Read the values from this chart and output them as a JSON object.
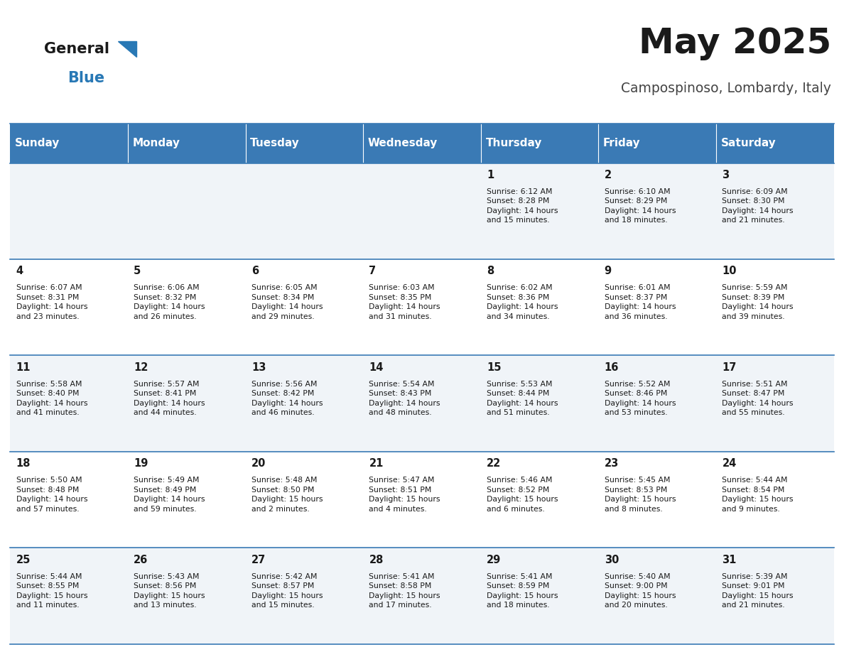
{
  "title": "May 2025",
  "subtitle": "Campospinoso, Lombardy, Italy",
  "header_bg": "#3a7ab5",
  "header_text": "#ffffff",
  "days_of_week": [
    "Sunday",
    "Monday",
    "Tuesday",
    "Wednesday",
    "Thursday",
    "Friday",
    "Saturday"
  ],
  "cal_data": [
    [
      "",
      "",
      "",
      "",
      "1\nSunrise: 6:12 AM\nSunset: 8:28 PM\nDaylight: 14 hours\nand 15 minutes.",
      "2\nSunrise: 6:10 AM\nSunset: 8:29 PM\nDaylight: 14 hours\nand 18 minutes.",
      "3\nSunrise: 6:09 AM\nSunset: 8:30 PM\nDaylight: 14 hours\nand 21 minutes."
    ],
    [
      "4\nSunrise: 6:07 AM\nSunset: 8:31 PM\nDaylight: 14 hours\nand 23 minutes.",
      "5\nSunrise: 6:06 AM\nSunset: 8:32 PM\nDaylight: 14 hours\nand 26 minutes.",
      "6\nSunrise: 6:05 AM\nSunset: 8:34 PM\nDaylight: 14 hours\nand 29 minutes.",
      "7\nSunrise: 6:03 AM\nSunset: 8:35 PM\nDaylight: 14 hours\nand 31 minutes.",
      "8\nSunrise: 6:02 AM\nSunset: 8:36 PM\nDaylight: 14 hours\nand 34 minutes.",
      "9\nSunrise: 6:01 AM\nSunset: 8:37 PM\nDaylight: 14 hours\nand 36 minutes.",
      "10\nSunrise: 5:59 AM\nSunset: 8:39 PM\nDaylight: 14 hours\nand 39 minutes."
    ],
    [
      "11\nSunrise: 5:58 AM\nSunset: 8:40 PM\nDaylight: 14 hours\nand 41 minutes.",
      "12\nSunrise: 5:57 AM\nSunset: 8:41 PM\nDaylight: 14 hours\nand 44 minutes.",
      "13\nSunrise: 5:56 AM\nSunset: 8:42 PM\nDaylight: 14 hours\nand 46 minutes.",
      "14\nSunrise: 5:54 AM\nSunset: 8:43 PM\nDaylight: 14 hours\nand 48 minutes.",
      "15\nSunrise: 5:53 AM\nSunset: 8:44 PM\nDaylight: 14 hours\nand 51 minutes.",
      "16\nSunrise: 5:52 AM\nSunset: 8:46 PM\nDaylight: 14 hours\nand 53 minutes.",
      "17\nSunrise: 5:51 AM\nSunset: 8:47 PM\nDaylight: 14 hours\nand 55 minutes."
    ],
    [
      "18\nSunrise: 5:50 AM\nSunset: 8:48 PM\nDaylight: 14 hours\nand 57 minutes.",
      "19\nSunrise: 5:49 AM\nSunset: 8:49 PM\nDaylight: 14 hours\nand 59 minutes.",
      "20\nSunrise: 5:48 AM\nSunset: 8:50 PM\nDaylight: 15 hours\nand 2 minutes.",
      "21\nSunrise: 5:47 AM\nSunset: 8:51 PM\nDaylight: 15 hours\nand 4 minutes.",
      "22\nSunrise: 5:46 AM\nSunset: 8:52 PM\nDaylight: 15 hours\nand 6 minutes.",
      "23\nSunrise: 5:45 AM\nSunset: 8:53 PM\nDaylight: 15 hours\nand 8 minutes.",
      "24\nSunrise: 5:44 AM\nSunset: 8:54 PM\nDaylight: 15 hours\nand 9 minutes."
    ],
    [
      "25\nSunrise: 5:44 AM\nSunset: 8:55 PM\nDaylight: 15 hours\nand 11 minutes.",
      "26\nSunrise: 5:43 AM\nSunset: 8:56 PM\nDaylight: 15 hours\nand 13 minutes.",
      "27\nSunrise: 5:42 AM\nSunset: 8:57 PM\nDaylight: 15 hours\nand 15 minutes.",
      "28\nSunrise: 5:41 AM\nSunset: 8:58 PM\nDaylight: 15 hours\nand 17 minutes.",
      "29\nSunrise: 5:41 AM\nSunset: 8:59 PM\nDaylight: 15 hours\nand 18 minutes.",
      "30\nSunrise: 5:40 AM\nSunset: 9:00 PM\nDaylight: 15 hours\nand 20 minutes.",
      "31\nSunrise: 5:39 AM\nSunset: 9:01 PM\nDaylight: 15 hours\nand 21 minutes."
    ]
  ],
  "divider_color": "#3a7ab5",
  "cell_text_color": "#1a1a1a",
  "title_color": "#1a1a1a",
  "subtitle_color": "#444444",
  "logo_general_color": "#1a1a1a",
  "logo_blue_color": "#2878b5",
  "logo_triangle_color": "#2878b5",
  "row_bg": [
    "#f0f4f8",
    "#ffffff",
    "#f0f4f8",
    "#ffffff",
    "#f0f4f8"
  ]
}
